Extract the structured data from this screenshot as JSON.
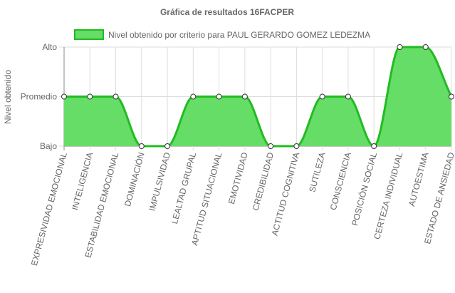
{
  "chart_data": {
    "type": "area",
    "title": "Gráfica de resultados 16FACPER",
    "ylabel": "Nivel obtenido",
    "xlabel": "",
    "y_categories": [
      "Bajo",
      "Promedio",
      "Alto"
    ],
    "categories": [
      "EXPRESIVIDAD EMOCIONAL",
      "INTELIGENCIA",
      "ESTABILIDAD EMOCIONAL",
      "DOMINACIÓN",
      "IMPULSIVIDAD",
      "LEALTAD GRUPAL",
      "APTITUD SITUACIONAL",
      "EMOTIVIDAD",
      "CREDIBILIDAD",
      "ACTITUD COGNITIVA",
      "SUTILEZA",
      "CONSCIENCIA",
      "POSICIÓN SOCIAL",
      "CERTEZA INDIVIDUAL",
      "AUTOESTIMA",
      "ESTADO DE ANSIEDAD"
    ],
    "series": [
      {
        "name": "Nivel obtenido por criterio para PAUL GERARDO GOMEZ LEDEZMA",
        "values": [
          2,
          2,
          2,
          1,
          1,
          2,
          2,
          2,
          1,
          1,
          2,
          2,
          1,
          3,
          3,
          2
        ]
      }
    ],
    "ylim": [
      1,
      3
    ],
    "grid": true,
    "legend": "top",
    "colors": {
      "fill": "#66dd66",
      "stroke": "#22bb22",
      "point_fill": "#ffffff",
      "point_stroke": "#333333",
      "grid": "#dddddd",
      "axis": "#888888"
    }
  }
}
